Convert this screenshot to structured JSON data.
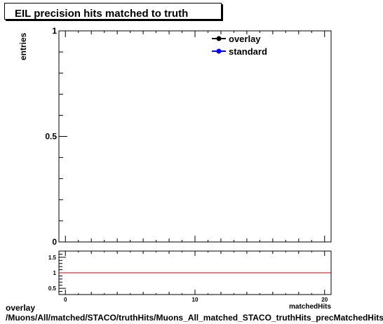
{
  "title": "EIL precision hits matched to truth",
  "ylabel": "entries",
  "xlabel": "matchedHits",
  "footer": {
    "line1": "overlay",
    "line2": "/Muons/All/matched/STACO/truthHits/Muons_All_matched_STACO_truthHits_precMatchedHitsEIL"
  },
  "chart_data": [
    {
      "type": "line",
      "title": "EIL precision hits matched to truth",
      "ylabel": "entries",
      "xlim": [
        -0.5,
        20.5
      ],
      "ylim": [
        0,
        1
      ],
      "xticks": [
        0,
        10,
        20
      ],
      "yticks": [
        0,
        0.5,
        1
      ],
      "ytick_labels": [
        "0",
        "0.5",
        "1"
      ],
      "legend_position": "top-right",
      "series": [
        {
          "name": "overlay",
          "color": "#000000",
          "marker": "circle",
          "x": [],
          "y": []
        },
        {
          "name": "standard",
          "color": "#0000ff",
          "marker": "circle",
          "x": [],
          "y": []
        }
      ]
    },
    {
      "type": "line",
      "xlim": [
        -0.5,
        20.5
      ],
      "ylim": [
        0.3,
        1.7
      ],
      "xticks": [
        0,
        10,
        20
      ],
      "xtick_labels": [
        "0",
        "10",
        "20"
      ],
      "yticks": [
        0.5,
        1,
        1.5
      ],
      "ytick_labels": [
        "0.5",
        "1",
        "1.5"
      ],
      "reference_line": {
        "y": 1,
        "color": "#cc0000"
      },
      "series": []
    }
  ]
}
